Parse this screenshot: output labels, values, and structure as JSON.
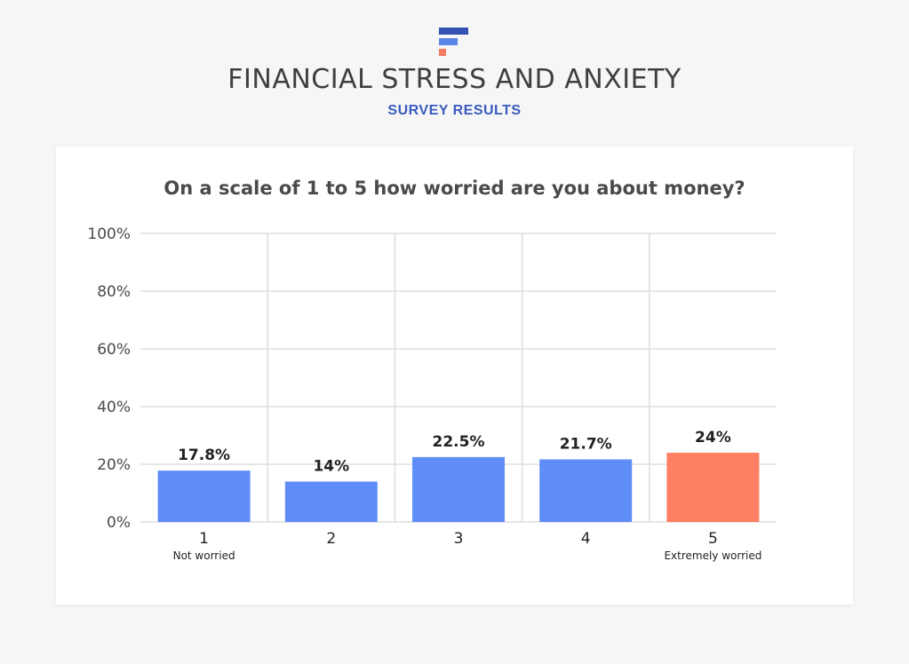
{
  "header": {
    "title": "FINANCIAL STRESS AND ANXIETY",
    "subtitle": "SURVEY RESULTS",
    "logo_icon": "brand-logo-icon",
    "logo_colors": [
      "#3452b4",
      "#5b86e8",
      "#f47a5e"
    ]
  },
  "chart_data": {
    "type": "bar",
    "title": "On a scale of 1 to 5 how worried are you about money?",
    "xlabel": "",
    "ylabel": "",
    "categories": [
      "1",
      "2",
      "3",
      "4",
      "5"
    ],
    "category_sublabels": [
      "Not worried",
      "",
      "",
      "",
      "Extremely worried"
    ],
    "values": [
      17.8,
      14,
      22.5,
      21.7,
      24
    ],
    "value_labels": [
      "17.8%",
      "14%",
      "22.5%",
      "21.7%",
      "24%"
    ],
    "ylim": [
      0,
      100
    ],
    "yticks": [
      0,
      20,
      40,
      60,
      80,
      100
    ],
    "ytick_labels": [
      "0%",
      "20%",
      "40%",
      "60%",
      "80%",
      "100%"
    ],
    "grid": true,
    "legend": "none",
    "colors": {
      "default_bar": "#5f8df7",
      "highlight_bar": "#ff7f62",
      "grid": "#dddddd"
    },
    "highlight_index": 4
  }
}
